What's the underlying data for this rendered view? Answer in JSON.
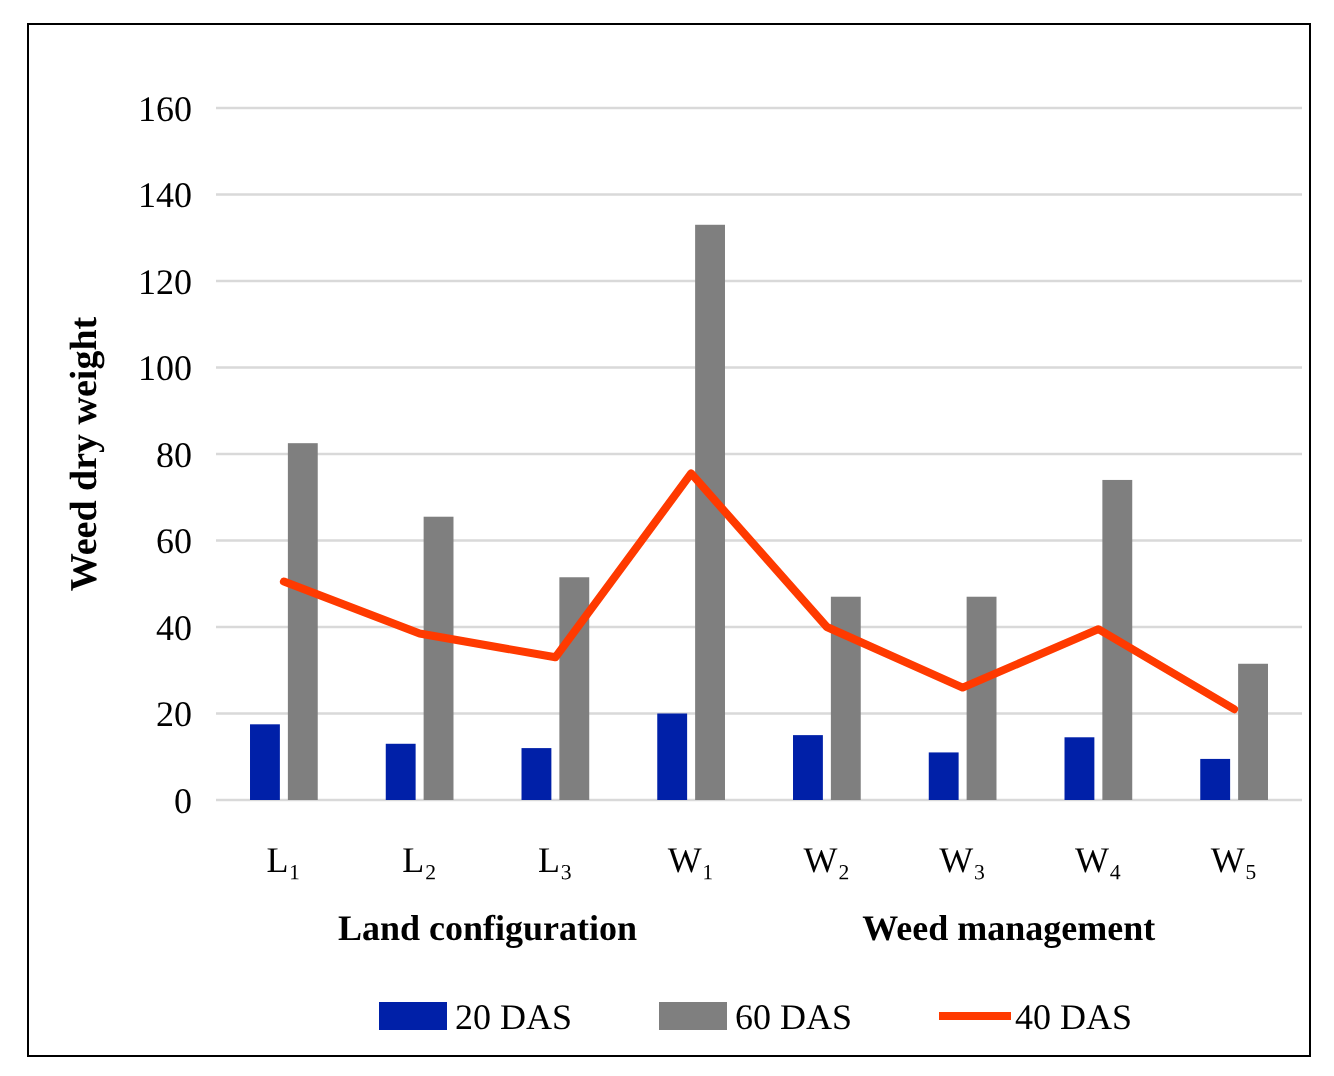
{
  "chart_data": {
    "type": "bar",
    "ylabel": "Weed dry weight",
    "categories": [
      "L₁",
      "L₂",
      "L₃",
      "W₁",
      "W₂",
      "W₃",
      "W₄",
      "W₅"
    ],
    "series": [
      {
        "name": "20 DAS",
        "color": "#0020a8",
        "values": [
          17.5,
          13,
          12,
          20,
          15,
          11,
          14.5,
          9.5
        ]
      },
      {
        "name": "60 DAS",
        "color": "#7f7f7f",
        "values": [
          82.5,
          65.5,
          51.5,
          133,
          47,
          47,
          74,
          31.5
        ]
      },
      {
        "name": "40 DAS",
        "type": "line",
        "color": "#ff3a00",
        "values": [
          50.5,
          38.5,
          33,
          75.5,
          40,
          26,
          39.5,
          21
        ]
      }
    ],
    "annotations": [
      "Land configuration",
      "Weed management"
    ],
    "ylim": [
      0,
      160
    ],
    "yticks": [
      0,
      20,
      40,
      60,
      80,
      100,
      120,
      140,
      160
    ],
    "grid": "y",
    "legend": "bottom",
    "marker": "none",
    "line_style": "solid"
  }
}
